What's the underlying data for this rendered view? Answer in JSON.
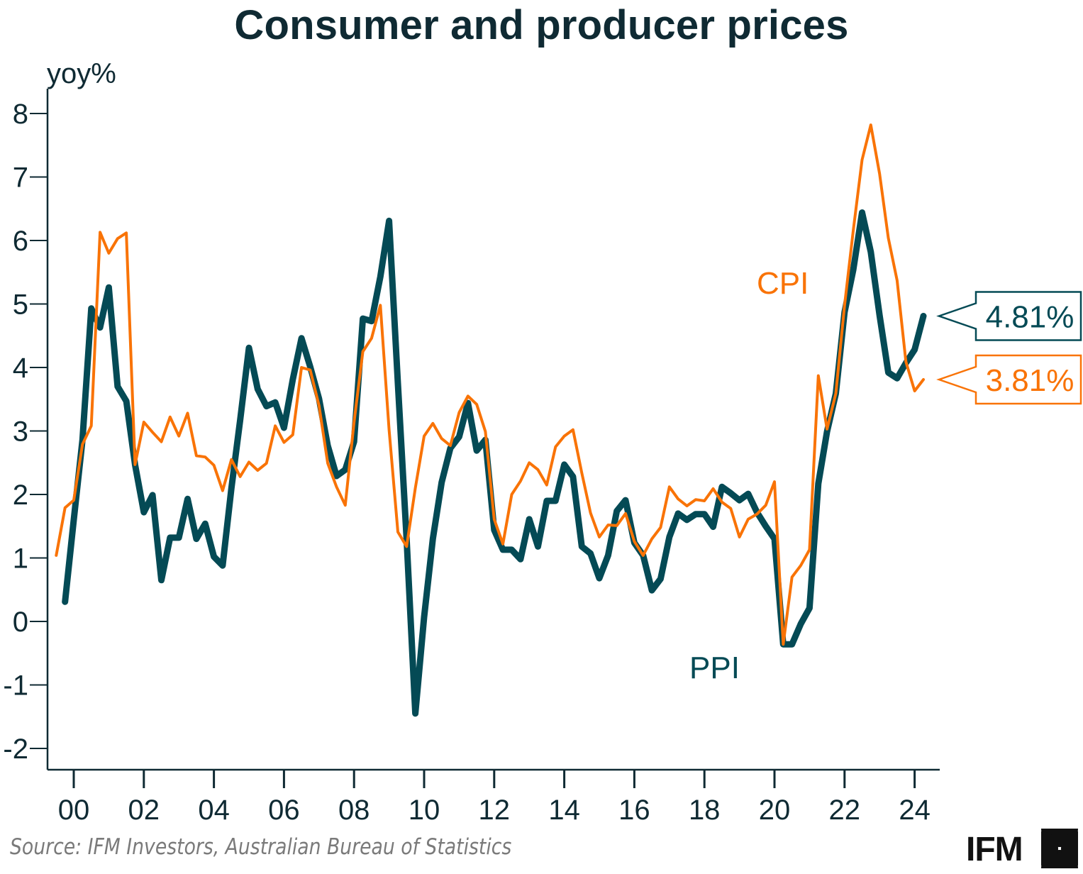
{
  "chart_data": {
    "type": "line",
    "title": "Consumer and producer prices",
    "ylabel": "yoy%",
    "xlabel": "",
    "ylim": [
      -2.33,
      8.4
    ],
    "xlim": [
      1999.3,
      2025.0
    ],
    "yticks": [
      8,
      7,
      6,
      5,
      4,
      3,
      2,
      1,
      0,
      -1,
      -2
    ],
    "ytick_labels": [
      "8",
      "7",
      "6",
      "5",
      "4",
      "3",
      "2",
      "1",
      "0",
      "-1",
      "-2"
    ],
    "xticks": [
      2000,
      2002,
      2004,
      2006,
      2008,
      2010,
      2012,
      2014,
      2016,
      2018,
      2020,
      2022,
      2024
    ],
    "xtick_labels": [
      "00",
      "02",
      "04",
      "06",
      "08",
      "10",
      "12",
      "14",
      "16",
      "18",
      "20",
      "22",
      "24"
    ],
    "grid": false,
    "frequency": "quarterly",
    "series": [
      {
        "name": "PPI",
        "label": "PPI",
        "color": "#044a55",
        "start": 1999.75,
        "step": 0.25,
        "values": [
          0.31,
          1.6,
          2.86,
          4.93,
          4.63,
          5.26,
          3.7,
          3.47,
          2.47,
          1.72,
          1.99,
          0.65,
          1.32,
          1.32,
          1.93,
          1.3,
          1.54,
          1.02,
          0.88,
          2.1,
          3.17,
          4.31,
          3.66,
          3.39,
          3.45,
          3.05,
          3.81,
          4.46,
          4.01,
          3.51,
          2.77,
          2.29,
          2.39,
          2.83,
          4.77,
          4.73,
          5.43,
          6.31,
          3.75,
          1.3,
          -1.45,
          0.07,
          1.3,
          2.19,
          2.73,
          2.91,
          3.44,
          2.69,
          2.86,
          1.44,
          1.13,
          1.13,
          0.98,
          1.61,
          1.18,
          1.9,
          1.9,
          2.47,
          2.28,
          1.18,
          1.07,
          0.68,
          1.04,
          1.74,
          1.91,
          1.24,
          1.04,
          0.49,
          0.67,
          1.33,
          1.7,
          1.6,
          1.69,
          1.69,
          1.49,
          2.12,
          2.02,
          1.91,
          2.01,
          1.72,
          1.5,
          1.3,
          -0.36,
          -0.36,
          -0.04,
          0.21,
          2.17,
          2.99,
          3.59,
          4.87,
          5.54,
          6.44,
          5.82,
          4.82,
          3.92,
          3.83,
          4.07,
          4.28,
          4.81
        ]
      },
      {
        "name": "CPI",
        "label": "CPI",
        "color": "#f97306",
        "start": 1999.5,
        "step": 0.25,
        "values": [
          1.04,
          1.79,
          1.91,
          2.79,
          3.08,
          6.13,
          5.8,
          6.03,
          6.12,
          2.47,
          3.14,
          2.98,
          2.83,
          3.22,
          2.92,
          3.28,
          2.61,
          2.59,
          2.46,
          2.06,
          2.55,
          2.28,
          2.51,
          2.38,
          2.49,
          3.08,
          2.82,
          2.94,
          4.0,
          3.96,
          3.4,
          2.49,
          2.12,
          1.83,
          3.14,
          4.25,
          4.46,
          4.98,
          3.02,
          1.41,
          1.18,
          2.1,
          2.92,
          3.12,
          2.88,
          2.77,
          3.29,
          3.55,
          3.42,
          2.99,
          1.61,
          1.22,
          2.0,
          2.21,
          2.5,
          2.39,
          2.15,
          2.75,
          2.92,
          3.02,
          2.34,
          1.71,
          1.33,
          1.52,
          1.51,
          1.7,
          1.26,
          1.04,
          1.3,
          1.48,
          2.12,
          1.93,
          1.82,
          1.92,
          1.9,
          2.09,
          1.88,
          1.78,
          1.33,
          1.61,
          1.69,
          1.83,
          2.2,
          -0.36,
          0.7,
          0.88,
          1.13,
          3.87,
          3.03,
          3.59,
          4.98,
          6.16,
          7.27,
          7.82,
          7.05,
          6.04,
          5.37,
          4.09,
          3.63,
          3.81
        ]
      }
    ],
    "annotations": [
      {
        "series": "PPI",
        "text": "4.81%",
        "value": 4.81
      },
      {
        "series": "CPI",
        "text": "3.81%",
        "value": 3.81
      }
    ],
    "series_labels": [
      {
        "text": "CPI",
        "near": "upper-right"
      },
      {
        "text": "PPI",
        "near": "lower-center"
      }
    ],
    "legend": "inline-labels"
  },
  "footer": {
    "source": "Source: IFM Investors, Australian Bureau of Statistics",
    "logo_text": "IFM",
    "logo_icon": "ifm-logo-mark-icon"
  },
  "colors": {
    "axis": "#0f2a33",
    "title": "#0f2a33",
    "ppi": "#044a55",
    "cpi": "#f97306",
    "source_text": "#7a7a7a"
  }
}
